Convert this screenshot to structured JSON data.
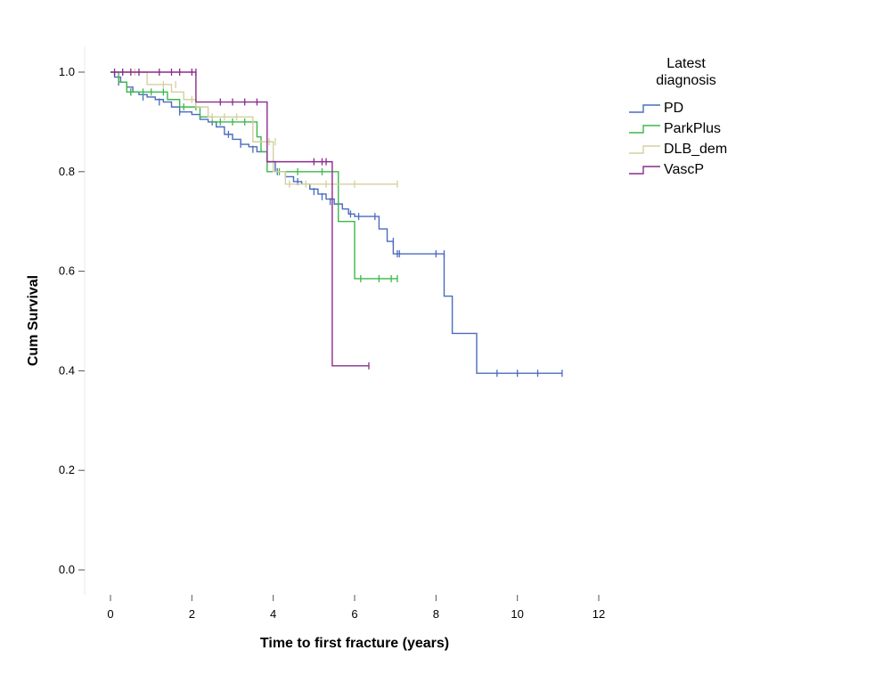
{
  "chart_data": {
    "type": "line",
    "subtype": "kaplan-meier",
    "title": "",
    "xlabel": "Time to first fracture (years)",
    "ylabel": "Cum Survival",
    "xlim": [
      0,
      12
    ],
    "ylim": [
      0,
      1
    ],
    "xticks": [
      0,
      2,
      4,
      6,
      8,
      10,
      12
    ],
    "yticks": [
      0.0,
      0.2,
      0.4,
      0.6,
      0.8,
      1.0
    ],
    "ytick_labels": [
      "0.0",
      "0.2",
      "0.4",
      "0.6",
      "0.8",
      "1.0"
    ],
    "grid": false,
    "legend": {
      "title_line1": "Latest",
      "title_line2": "diagnosis",
      "position": "top-right"
    },
    "series": [
      {
        "name": "PD",
        "color": "#4a6bbf",
        "steps": [
          [
            0,
            1.0
          ],
          [
            0.1,
            0.99
          ],
          [
            0.25,
            0.98
          ],
          [
            0.4,
            0.97
          ],
          [
            0.55,
            0.96
          ],
          [
            0.7,
            0.955
          ],
          [
            0.9,
            0.95
          ],
          [
            1.1,
            0.945
          ],
          [
            1.3,
            0.94
          ],
          [
            1.5,
            0.93
          ],
          [
            1.7,
            0.92
          ],
          [
            2.0,
            0.915
          ],
          [
            2.2,
            0.905
          ],
          [
            2.4,
            0.9
          ],
          [
            2.6,
            0.89
          ],
          [
            2.8,
            0.875
          ],
          [
            3.0,
            0.865
          ],
          [
            3.2,
            0.855
          ],
          [
            3.4,
            0.85
          ],
          [
            3.6,
            0.84
          ],
          [
            3.85,
            0.82
          ],
          [
            4.05,
            0.8
          ],
          [
            4.3,
            0.79
          ],
          [
            4.5,
            0.78
          ],
          [
            4.7,
            0.775
          ],
          [
            4.9,
            0.765
          ],
          [
            5.1,
            0.755
          ],
          [
            5.3,
            0.745
          ],
          [
            5.5,
            0.735
          ],
          [
            5.7,
            0.725
          ],
          [
            5.85,
            0.715
          ],
          [
            6.0,
            0.71
          ],
          [
            6.6,
            0.685
          ],
          [
            6.8,
            0.66
          ],
          [
            6.95,
            0.635
          ],
          [
            8.2,
            0.55
          ],
          [
            8.4,
            0.475
          ],
          [
            9.0,
            0.395
          ],
          [
            11.1,
            0.395
          ]
        ],
        "censors": [
          [
            0.2,
            0.98
          ],
          [
            0.5,
            0.96
          ],
          [
            0.8,
            0.95
          ],
          [
            1.2,
            0.94
          ],
          [
            1.7,
            0.92
          ],
          [
            2.5,
            0.9
          ],
          [
            2.9,
            0.875
          ],
          [
            3.2,
            0.855
          ],
          [
            3.5,
            0.845
          ],
          [
            4.1,
            0.8
          ],
          [
            4.6,
            0.78
          ],
          [
            5.0,
            0.76
          ],
          [
            5.2,
            0.75
          ],
          [
            5.4,
            0.74
          ],
          [
            5.9,
            0.715
          ],
          [
            6.1,
            0.71
          ],
          [
            6.5,
            0.71
          ],
          [
            6.95,
            0.66
          ],
          [
            7.05,
            0.635
          ],
          [
            7.1,
            0.635
          ],
          [
            8.0,
            0.635
          ],
          [
            8.2,
            0.635
          ],
          [
            9.5,
            0.395
          ],
          [
            10.0,
            0.395
          ],
          [
            10.5,
            0.395
          ],
          [
            11.1,
            0.395
          ]
        ]
      },
      {
        "name": "ParkPlus",
        "color": "#3cb84a",
        "steps": [
          [
            0,
            1.0
          ],
          [
            0.2,
            0.98
          ],
          [
            0.4,
            0.96
          ],
          [
            1.4,
            0.945
          ],
          [
            1.7,
            0.93
          ],
          [
            2.2,
            0.91
          ],
          [
            2.5,
            0.9
          ],
          [
            3.6,
            0.87
          ],
          [
            3.7,
            0.84
          ],
          [
            3.85,
            0.8
          ],
          [
            5.6,
            0.7
          ],
          [
            6.0,
            0.585
          ],
          [
            7.05,
            0.585
          ]
        ],
        "censors": [
          [
            0.5,
            0.96
          ],
          [
            0.8,
            0.96
          ],
          [
            1.0,
            0.96
          ],
          [
            1.3,
            0.96
          ],
          [
            1.8,
            0.93
          ],
          [
            2.1,
            0.93
          ],
          [
            2.7,
            0.9
          ],
          [
            3.0,
            0.9
          ],
          [
            3.3,
            0.9
          ],
          [
            4.15,
            0.8
          ],
          [
            4.6,
            0.8
          ],
          [
            5.2,
            0.8
          ],
          [
            6.15,
            0.585
          ],
          [
            6.6,
            0.585
          ],
          [
            6.9,
            0.585
          ],
          [
            7.05,
            0.585
          ]
        ]
      },
      {
        "name": "DLB_dem",
        "color": "#d4cfa0",
        "steps": [
          [
            0,
            1.0
          ],
          [
            0.9,
            0.975
          ],
          [
            1.5,
            0.96
          ],
          [
            1.8,
            0.945
          ],
          [
            2.1,
            0.93
          ],
          [
            2.4,
            0.91
          ],
          [
            3.5,
            0.86
          ],
          [
            4.0,
            0.8
          ],
          [
            4.3,
            0.775
          ],
          [
            7.05,
            0.775
          ]
        ],
        "censors": [
          [
            0.3,
            1.0
          ],
          [
            0.6,
            1.0
          ],
          [
            1.3,
            0.975
          ],
          [
            1.6,
            0.975
          ],
          [
            2.0,
            0.945
          ],
          [
            2.5,
            0.91
          ],
          [
            2.8,
            0.91
          ],
          [
            3.1,
            0.91
          ],
          [
            3.9,
            0.86
          ],
          [
            4.05,
            0.86
          ],
          [
            4.4,
            0.775
          ],
          [
            4.8,
            0.775
          ],
          [
            5.3,
            0.775
          ],
          [
            6.0,
            0.775
          ],
          [
            7.05,
            0.775
          ]
        ]
      },
      {
        "name": "VascP",
        "color": "#8b2c8b",
        "steps": [
          [
            0,
            1.0
          ],
          [
            2.1,
            0.94
          ],
          [
            3.85,
            0.82
          ],
          [
            5.45,
            0.41
          ],
          [
            6.35,
            0.41
          ]
        ],
        "censors": [
          [
            0.1,
            1.0
          ],
          [
            0.3,
            1.0
          ],
          [
            0.5,
            1.0
          ],
          [
            0.7,
            1.0
          ],
          [
            1.2,
            1.0
          ],
          [
            1.5,
            1.0
          ],
          [
            1.7,
            1.0
          ],
          [
            2.0,
            1.0
          ],
          [
            2.1,
            1.0
          ],
          [
            2.7,
            0.94
          ],
          [
            3.0,
            0.94
          ],
          [
            3.3,
            0.94
          ],
          [
            3.6,
            0.94
          ],
          [
            5.0,
            0.82
          ],
          [
            5.2,
            0.82
          ],
          [
            5.3,
            0.82
          ],
          [
            6.35,
            0.41
          ]
        ]
      }
    ]
  }
}
